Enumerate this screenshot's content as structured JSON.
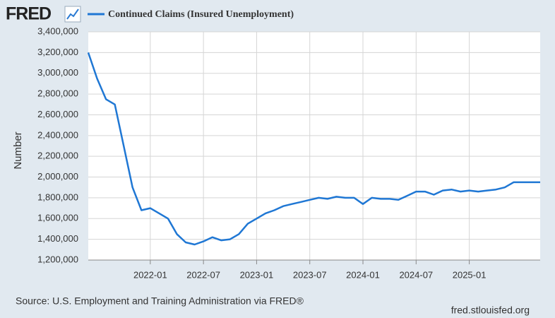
{
  "chart_data": {
    "type": "line",
    "logo": "FRED",
    "y_axis_label": "Number",
    "source": "Source: U.S. Employment and Training Administration via FRED®",
    "site": "fred.stlouisfed.org",
    "x": [
      "2021-06",
      "2021-07",
      "2021-08",
      "2021-09",
      "2021-10",
      "2021-11",
      "2021-12",
      "2022-01",
      "2022-02",
      "2022-03",
      "2022-04",
      "2022-05",
      "2022-06",
      "2022-07",
      "2022-08",
      "2022-09",
      "2022-10",
      "2022-11",
      "2022-12",
      "2023-01",
      "2023-02",
      "2023-03",
      "2023-04",
      "2023-05",
      "2023-06",
      "2023-07",
      "2023-08",
      "2023-09",
      "2023-10",
      "2023-11",
      "2023-12",
      "2024-01",
      "2024-02",
      "2024-03",
      "2024-04",
      "2024-05",
      "2024-06",
      "2024-07",
      "2024-08",
      "2024-09",
      "2024-10",
      "2024-11",
      "2024-12",
      "2025-01",
      "2025-02",
      "2025-03",
      "2025-04",
      "2025-05",
      "2025-06",
      "2025-07",
      "2025-08",
      "2025-09"
    ],
    "series": [
      {
        "name": "Continued Claims (Insured Unemployment)",
        "color": "#1f77d4",
        "values": [
          3200000,
          2950000,
          2750000,
          2700000,
          2300000,
          1900000,
          1680000,
          1700000,
          1650000,
          1600000,
          1450000,
          1370000,
          1350000,
          1380000,
          1420000,
          1390000,
          1400000,
          1450000,
          1550000,
          1600000,
          1650000,
          1680000,
          1720000,
          1740000,
          1760000,
          1780000,
          1800000,
          1790000,
          1810000,
          1800000,
          1800000,
          1740000,
          1800000,
          1790000,
          1790000,
          1780000,
          1820000,
          1860000,
          1860000,
          1830000,
          1870000,
          1880000,
          1860000,
          1870000,
          1860000,
          1870000,
          1880000,
          1900000,
          1950000,
          1950000,
          1950000,
          1950000
        ]
      }
    ],
    "xlim": [
      "2021-06",
      "2025-09"
    ],
    "xticks": [
      "2022-01",
      "2022-07",
      "2023-01",
      "2023-07",
      "2024-01",
      "2024-07",
      "2025-01"
    ],
    "ylim": [
      1200000,
      3400000
    ],
    "yticks": [
      {
        "value": 1200000,
        "label": "1,200,000"
      },
      {
        "value": 1400000,
        "label": "1,400,000"
      },
      {
        "value": 1600000,
        "label": "1,600,000"
      },
      {
        "value": 1800000,
        "label": "1,800,000"
      },
      {
        "value": 2000000,
        "label": "2,000,000"
      },
      {
        "value": 2200000,
        "label": "2,200,000"
      },
      {
        "value": 2400000,
        "label": "2,400,000"
      },
      {
        "value": 2600000,
        "label": "2,600,000"
      },
      {
        "value": 2800000,
        "label": "2,800,000"
      },
      {
        "value": 3000000,
        "label": "3,000,000"
      },
      {
        "value": 3200000,
        "label": "3,200,000"
      },
      {
        "value": 3400000,
        "label": "3,400,000"
      }
    ],
    "grid": true
  }
}
